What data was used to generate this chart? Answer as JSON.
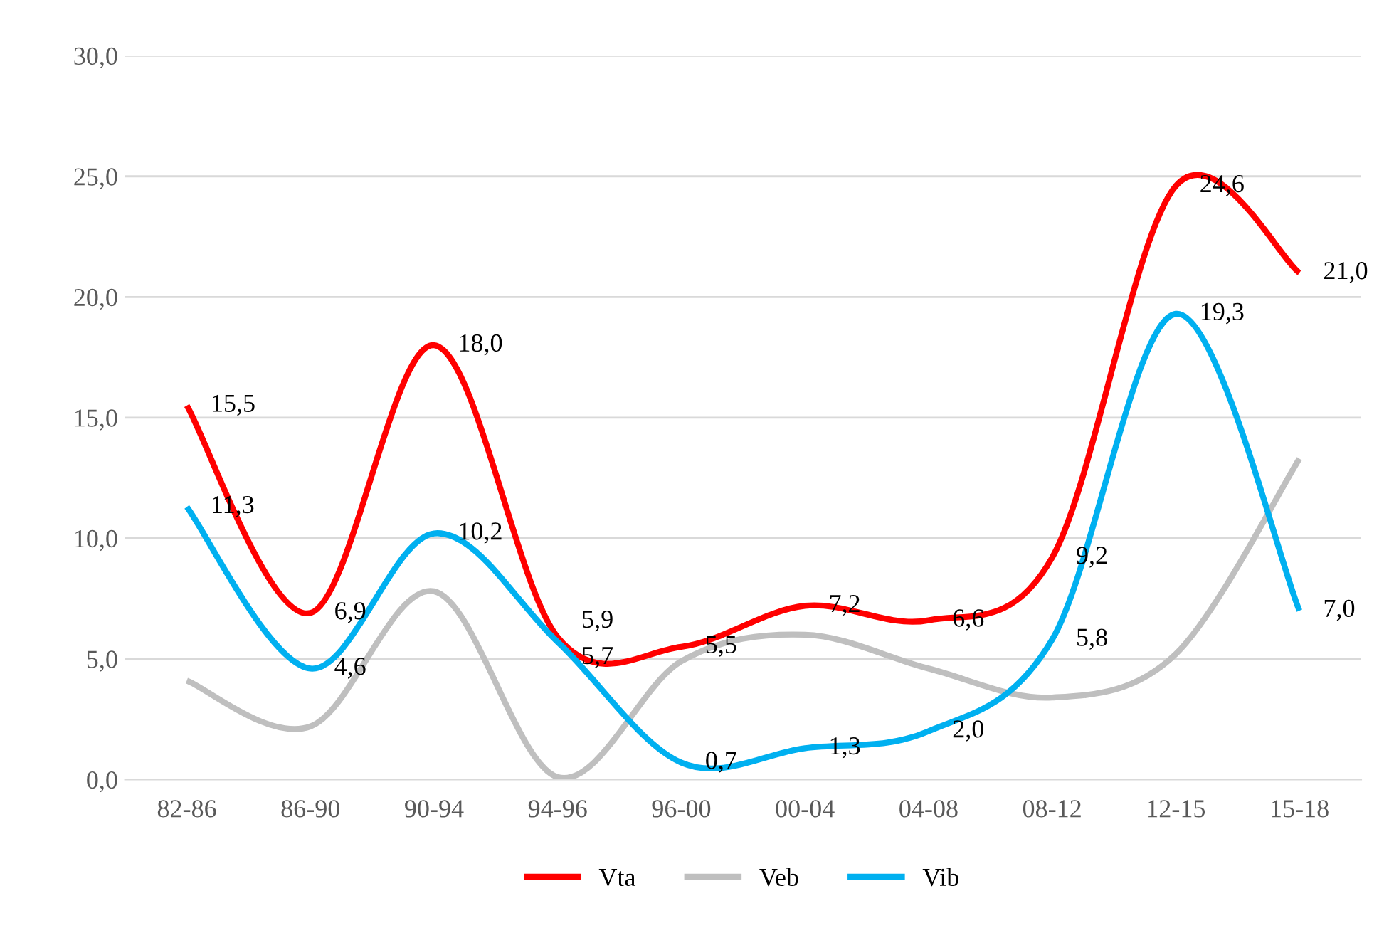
{
  "chart_data": {
    "type": "line",
    "categories": [
      "82-86",
      "86-90",
      "90-94",
      "94-96",
      "96-00",
      "00-04",
      "04-08",
      "08-12",
      "12-15",
      "15-18"
    ],
    "series": [
      {
        "name": "Vta",
        "color": "#ff0000",
        "values": [
          15.5,
          6.9,
          18.0,
          5.9,
          5.5,
          7.2,
          6.6,
          9.2,
          24.6,
          21.0
        ],
        "value_labels": [
          "15,5",
          "6,9",
          "18,0",
          "5,9",
          "5,5",
          "7,2",
          "6,6",
          "9,2",
          "24,6",
          "21,0"
        ]
      },
      {
        "name": "Veb",
        "color": "#bfbfbf",
        "values": [
          4.1,
          2.2,
          7.8,
          0.1,
          4.9,
          6.0,
          4.6,
          3.4,
          5.2,
          13.3
        ]
      },
      {
        "name": "Vib",
        "color": "#00b0f0",
        "values": [
          11.3,
          4.6,
          10.2,
          5.7,
          0.7,
          1.3,
          2.0,
          5.8,
          19.3,
          7.0
        ],
        "value_labels": [
          "11,3",
          "4,6",
          "10,2",
          "5,7",
          "0,7",
          "1,3",
          "2,0",
          "5,8",
          "19,3",
          "7,0"
        ]
      }
    ],
    "ylim": [
      0,
      30
    ],
    "yticks": [
      {
        "value": 0,
        "label": "0,0"
      },
      {
        "value": 5,
        "label": "5,0"
      },
      {
        "value": 10,
        "label": "10,0"
      },
      {
        "value": 15,
        "label": "15,0"
      },
      {
        "value": 20,
        "label": "20,0"
      },
      {
        "value": 25,
        "label": "25,0"
      },
      {
        "value": 30,
        "label": "30,0"
      }
    ],
    "grid": "y",
    "legend": "bottom",
    "marker": "none",
    "line_style": "solid"
  }
}
